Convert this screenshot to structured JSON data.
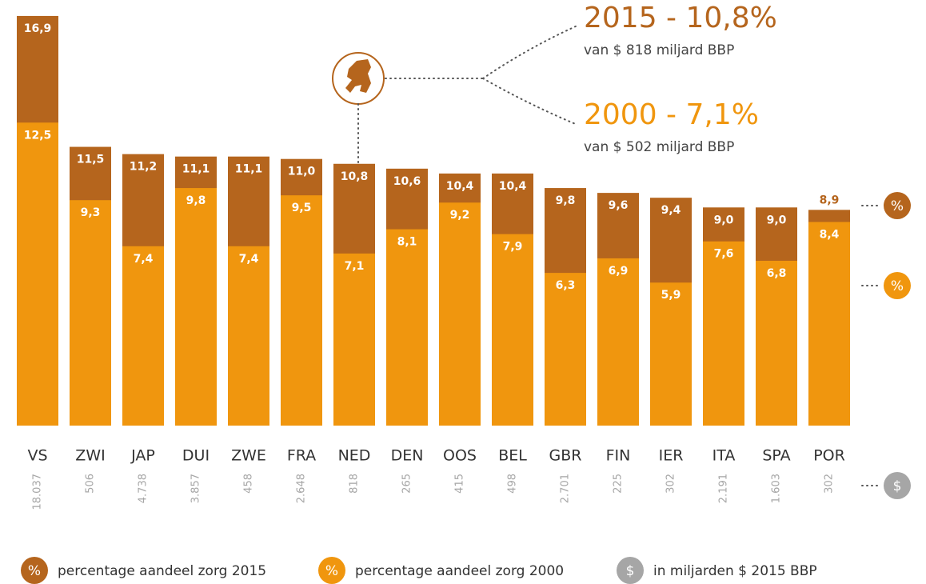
{
  "chart_data": {
    "type": "bar",
    "categories": [
      "VS",
      "ZWI",
      "JAP",
      "DUI",
      "ZWE",
      "FRA",
      "NED",
      "DEN",
      "OOS",
      "BEL",
      "GBR",
      "FIN",
      "IER",
      "ITA",
      "SPA",
      "POR"
    ],
    "series": [
      {
        "name": "percentage aandeel zorg 2015",
        "symbol": "%",
        "color": "#b5651d",
        "values": [
          16.9,
          11.5,
          11.2,
          11.1,
          11.1,
          11.0,
          10.8,
          10.6,
          10.4,
          10.4,
          9.8,
          9.6,
          9.4,
          9.0,
          9.0,
          8.9
        ],
        "value_labels": [
          "16,9",
          "11,5",
          "11,2",
          "11,1",
          "11,1",
          "11,0",
          "10,8",
          "10,6",
          "10,4",
          "10,4",
          "9,8",
          "9,6",
          "9,4",
          "9,0",
          "9,0",
          "8,9"
        ]
      },
      {
        "name": "percentage aandeel zorg 2000",
        "symbol": "%",
        "color": "#f0960e",
        "values": [
          12.5,
          9.3,
          7.4,
          9.8,
          7.4,
          9.5,
          7.1,
          8.1,
          9.2,
          7.9,
          6.3,
          6.9,
          5.9,
          7.6,
          6.8,
          8.4
        ],
        "value_labels": [
          "12,5",
          "9,3",
          "7,4",
          "9,8",
          "7,4",
          "9,5",
          "7,1",
          "8,1",
          "9,2",
          "7,9",
          "6,3",
          "6,9",
          "5,9",
          "7,6",
          "6,8",
          "8,4"
        ]
      },
      {
        "name": "in miljarden $ 2015 BBP",
        "symbol": "$",
        "color": "#a6a6a6",
        "values": [
          18037,
          506,
          4738,
          3857,
          458,
          2648,
          818,
          265,
          415,
          498,
          2701,
          225,
          302,
          2191,
          1603,
          302
        ],
        "value_labels": [
          "18.037",
          "506",
          "4.738",
          "3.857",
          "458",
          "2.648",
          "818",
          "265",
          "415",
          "498",
          "2.701",
          "225",
          "302",
          "2.191",
          "1.603",
          "302"
        ]
      }
    ],
    "annotations": [
      {
        "title": "2015 - 10,8%",
        "subtitle": "van $ 818 miljard BBP"
      },
      {
        "title": "2000 - 7,1%",
        "subtitle": "van $ 502 miljard BBP"
      }
    ]
  }
}
